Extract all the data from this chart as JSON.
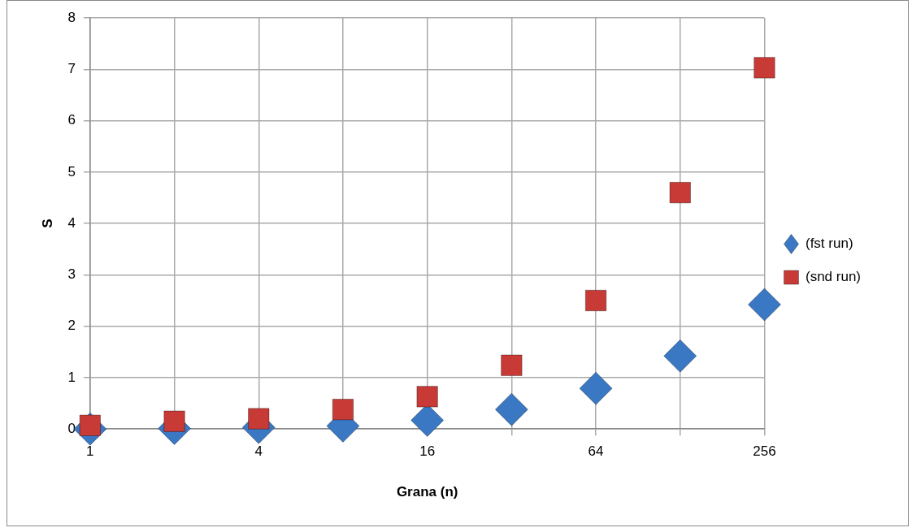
{
  "chart_data": {
    "type": "scatter",
    "xlabel": "Grana (n)",
    "ylabel": "S",
    "x": [
      1,
      2,
      4,
      8,
      16,
      32,
      64,
      128,
      256
    ],
    "series": [
      {
        "name": "(fst run)",
        "color": "#3a78c4",
        "marker": "diamond",
        "values": [
          0.0,
          0.01,
          0.03,
          0.06,
          0.17,
          0.38,
          0.79,
          1.42,
          2.42
        ]
      },
      {
        "name": "(snd run)",
        "color": "#c83a36",
        "marker": "square",
        "values": [
          0.07,
          0.15,
          0.2,
          0.38,
          0.63,
          1.24,
          2.5,
          4.6,
          7.03
        ]
      }
    ],
    "log": "x",
    "xlim": [
      1,
      256
    ],
    "xticks": [
      1,
      {
        "value": 2,
        "label": null
      },
      4,
      {
        "value": 8,
        "label": null
      },
      16,
      {
        "value": 32,
        "label": null
      },
      64,
      {
        "value": 128,
        "label": null
      },
      256
    ],
    "ylim": [
      0,
      8
    ],
    "yticks": [
      0,
      1,
      2,
      3,
      4,
      5,
      6,
      7,
      8
    ],
    "grid": true,
    "legend": "right"
  }
}
